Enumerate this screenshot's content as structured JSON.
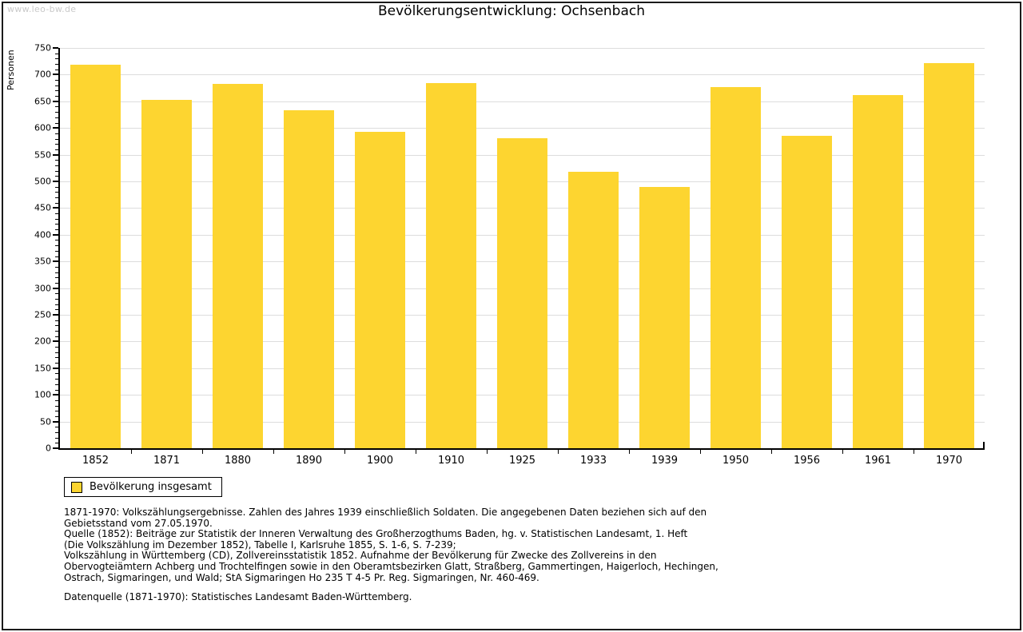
{
  "watermark": "www.leo-bw.de",
  "title": "Bevölkerungsentwicklung: Ochsenbach",
  "chart_data": {
    "type": "bar",
    "title": "Bevölkerungsentwicklung: Ochsenbach",
    "xlabel": "",
    "ylabel": "Personen",
    "categories": [
      "1852",
      "1871",
      "1880",
      "1890",
      "1900",
      "1910",
      "1925",
      "1933",
      "1939",
      "1950",
      "1956",
      "1961",
      "1970"
    ],
    "values": [
      718,
      653,
      682,
      634,
      593,
      684,
      581,
      518,
      490,
      676,
      585,
      662,
      721
    ],
    "series_name": "Bevölkerung insgesamt",
    "ylim": [
      0,
      750
    ],
    "yticks": [
      0,
      50,
      100,
      150,
      200,
      250,
      300,
      350,
      400,
      450,
      500,
      550,
      600,
      650,
      700,
      750
    ],
    "minor_tick_step": 10,
    "grid": true,
    "legend_position": "bottom-left",
    "bar_color": "#fdd530",
    "grid_color": "#dddddd",
    "axis_color": "#000000"
  },
  "legend": {
    "label": "Bevölkerung insgesamt"
  },
  "footer": {
    "lines": [
      "1871-1970: Volkszählungsergebnisse. Zahlen des Jahres 1939 einschließlich Soldaten. Die angegebenen Daten beziehen sich auf den",
      "Gebietsstand vom 27.05.1970.",
      "Quelle (1852): Beiträge zur Statistik der Inneren Verwaltung des Großherzogthums Baden, hg. v. Statistischen Landesamt, 1. Heft",
      "(Die Volkszählung im Dezember 1852), Tabelle I, Karlsruhe 1855, S. 1-6, S. 7-239;",
      "Volkszählung in Württemberg (CD), Zollvereinsstatistik 1852. Aufnahme der Bevölkerung für Zwecke des Zollvereins in den",
      "Obervogteiämtern Achberg und Trochtelfingen sowie in den Oberamtsbezirken Glatt, Straßberg, Gammertingen, Haigerloch, Hechingen,",
      "Ostrach, Sigmaringen, und Wald; StA Sigmaringen Ho 235 T 4-5 Pr. Reg. Sigmaringen, Nr. 460-469."
    ],
    "dataquelle": "Datenquelle (1871-1970): Statistisches Landesamt Baden-Württemberg."
  }
}
